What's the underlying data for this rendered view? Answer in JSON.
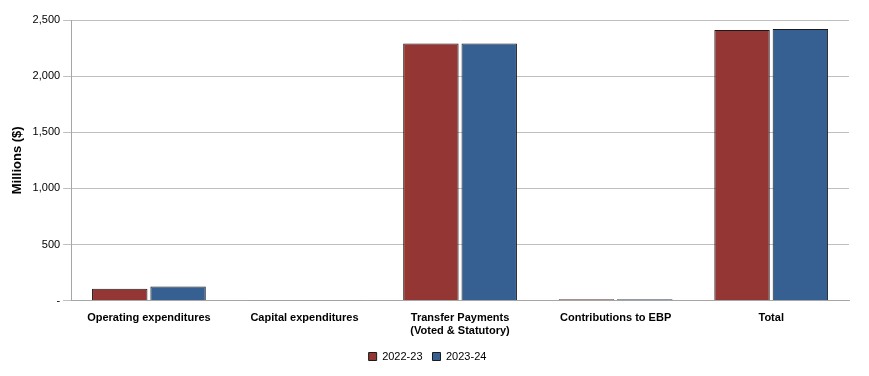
{
  "chart_data": {
    "type": "bar",
    "y_label": "Millions ($)",
    "categories": [
      "Operating expenditures",
      "Capital expenditures",
      "Transfer Payments (Voted & Statutory)",
      "Contributions to EBP",
      "Total"
    ],
    "series": [
      {
        "name": "2022-23",
        "color": "#943634",
        "values": [
          105,
          3,
          2290,
          12,
          2410
        ]
      },
      {
        "name": "2023-24",
        "color": "#366092",
        "values": [
          125,
          3,
          2290,
          12,
          2420
        ]
      }
    ],
    "ylim": [
      0,
      2500
    ],
    "yticks": [
      {
        "value": 0,
        "label": "-"
      },
      500,
      {
        "value": 1000,
        "label": "1,000"
      },
      {
        "value": 1500,
        "label": "1,500"
      },
      {
        "value": 2000,
        "label": "2,000"
      },
      {
        "value": 2500,
        "label": "2,500"
      }
    ],
    "grid": true,
    "legend": "bottom"
  }
}
